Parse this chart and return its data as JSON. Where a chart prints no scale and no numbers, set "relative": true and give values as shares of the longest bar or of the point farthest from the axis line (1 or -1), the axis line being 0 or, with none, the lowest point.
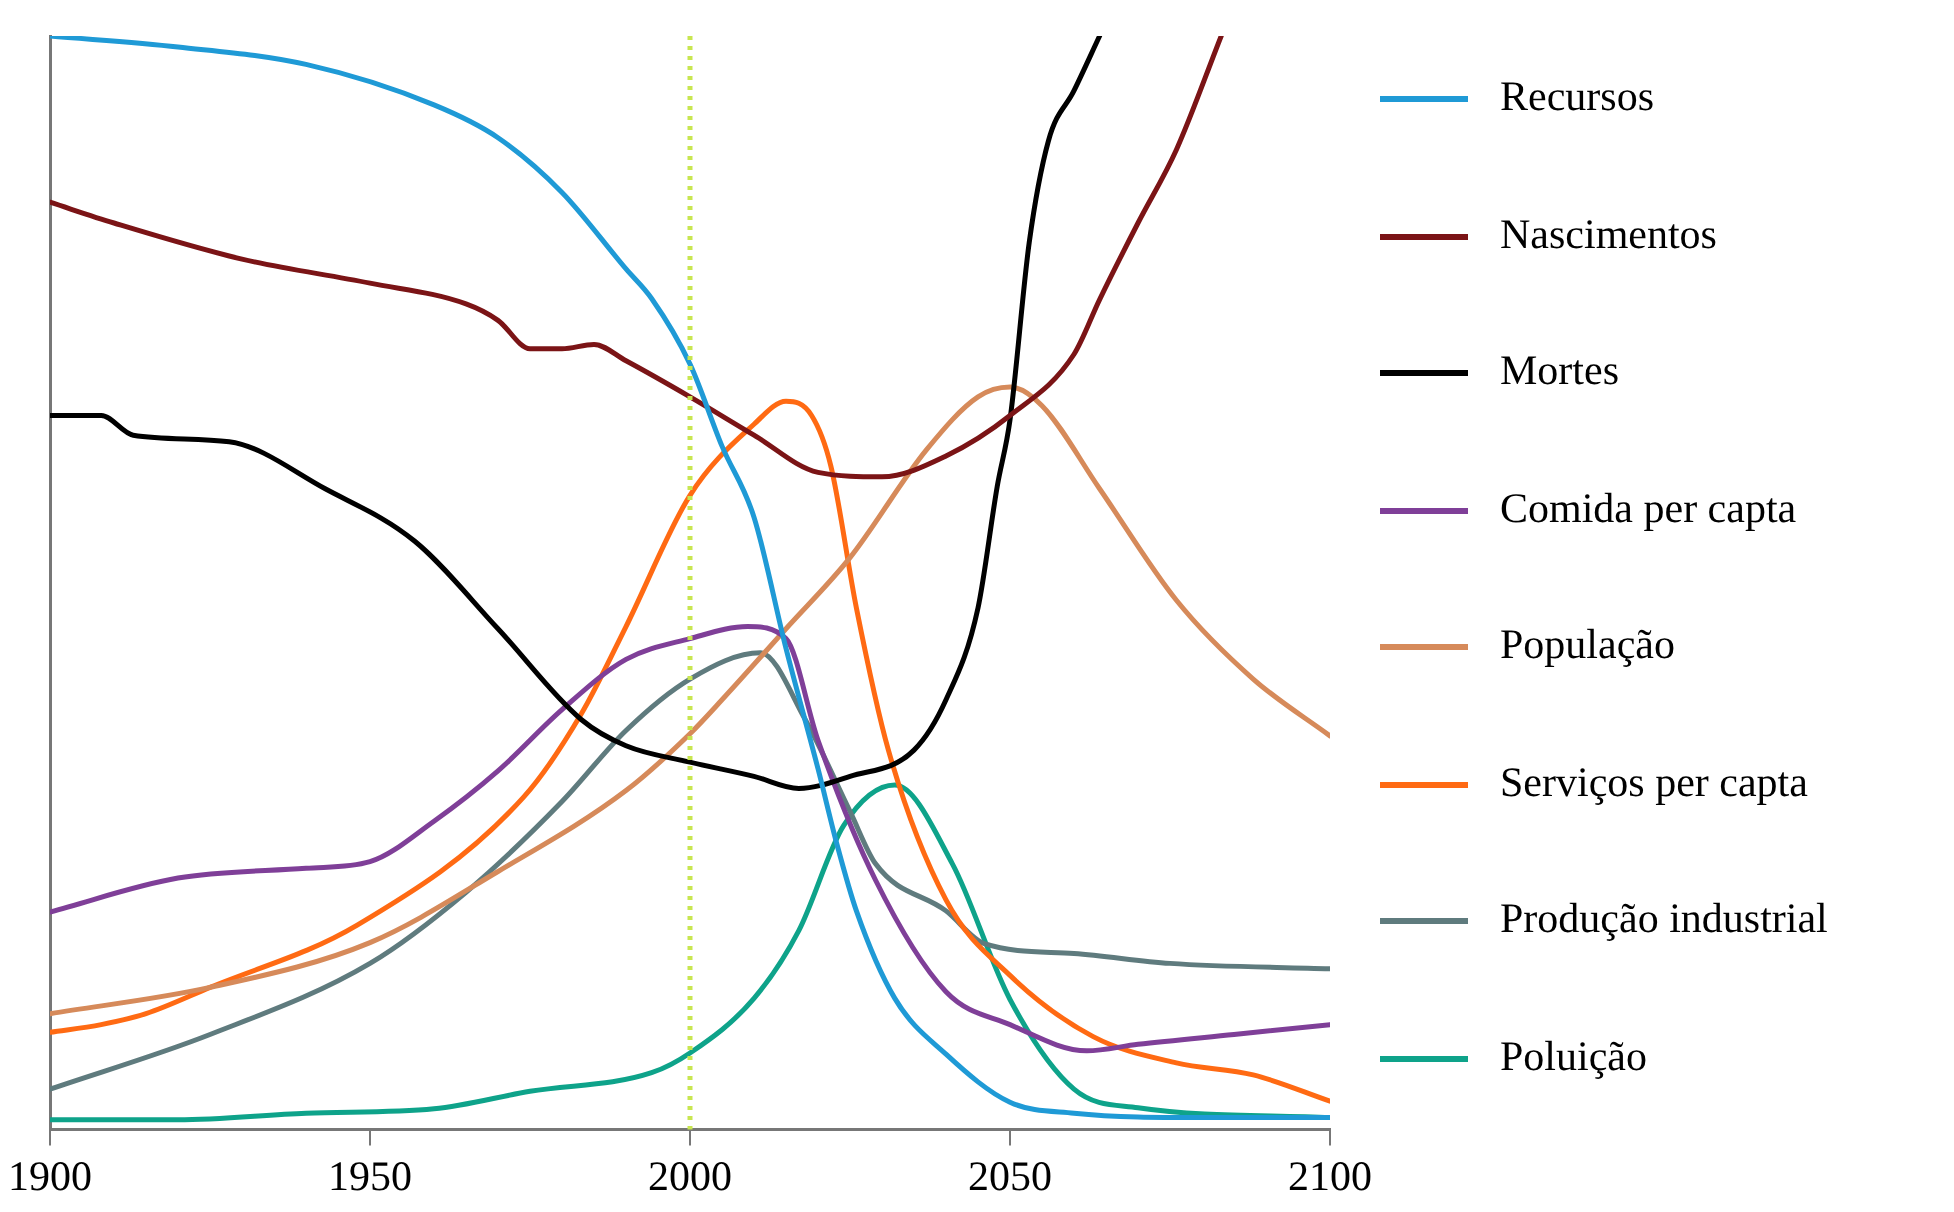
{
  "chart_data": {
    "type": "line",
    "relative": true,
    "xlim": [
      1900,
      2100
    ],
    "xticks": [
      1900,
      1950,
      2000,
      2050,
      2100
    ],
    "legend": "right",
    "grid": false,
    "marker": "none",
    "line_style": "solid",
    "ref_lines": [
      {
        "axis": "x",
        "value": 2000,
        "color": "#c8e650",
        "line_style": "dotted"
      }
    ],
    "series": [
      {
        "name": "Recursos",
        "color": "#1f9ad6",
        "x": [
          1900,
          1920,
          1940,
          1960,
          1970,
          1980,
          1990,
          1994,
          2000,
          2005,
          2010,
          2015,
          2020,
          2023,
          2026,
          2032,
          2040,
          2050,
          2060,
          2080,
          2100
        ],
        "values": [
          1.0,
          0.99,
          0.974,
          0.937,
          0.907,
          0.857,
          0.787,
          0.76,
          0.7,
          0.625,
          0.56,
          0.44,
          0.33,
          0.26,
          0.2,
          0.12,
          0.069,
          0.025,
          0.015,
          0.011,
          0.011
        ]
      },
      {
        "name": "Nascimentos",
        "color": "#7b1416",
        "x": [
          1900,
          1910,
          1930,
          1950,
          1965,
          1970,
          1975,
          1980,
          1985,
          1990,
          2000,
          2010,
          2020,
          2030,
          2040,
          2050,
          2060,
          2064,
          2070,
          2076,
          2083
        ],
        "values": [
          0.848,
          0.829,
          0.796,
          0.774,
          0.755,
          0.74,
          0.714,
          0.714,
          0.718,
          0.703,
          0.67,
          0.635,
          0.601,
          0.597,
          0.616,
          0.653,
          0.709,
          0.759,
          0.829,
          0.896,
          1.0
        ]
      },
      {
        "name": "Mortes",
        "color": "#000000",
        "x": [
          1900,
          1908,
          1913,
          1928,
          1943,
          1957,
          1970,
          1983,
          1990,
          2000,
          2010,
          2017,
          2025,
          2035,
          2040,
          2045,
          2048,
          2050,
          2053,
          2056,
          2060,
          2064
        ],
        "values": [
          0.653,
          0.653,
          0.635,
          0.629,
          0.586,
          0.538,
          0.458,
          0.375,
          0.351,
          0.336,
          0.323,
          0.312,
          0.323,
          0.347,
          0.393,
          0.477,
          0.588,
          0.649,
          0.811,
          0.904,
          0.95,
          1.0
        ]
      },
      {
        "name": "Comida per capta",
        "color": "#7f3f98",
        "x": [
          1900,
          1920,
          1940,
          1950,
          1960,
          1970,
          1980,
          1990,
          2000,
          2009,
          2015,
          2020,
          2029,
          2040,
          2050,
          2062,
          2070,
          2085,
          2100
        ],
        "values": [
          0.199,
          0.23,
          0.239,
          0.245,
          0.282,
          0.328,
          0.384,
          0.43,
          0.449,
          0.46,
          0.449,
          0.356,
          0.228,
          0.126,
          0.096,
          0.072,
          0.078,
          0.087,
          0.096
        ]
      },
      {
        "name": "População",
        "color": "#d68a5a",
        "x": [
          1900,
          1925,
          1950,
          1970,
          1990,
          2000,
          2005,
          2015,
          2025,
          2037,
          2045,
          2050,
          2055,
          2064,
          2076,
          2088,
          2100
        ],
        "values": [
          0.106,
          0.13,
          0.171,
          0.236,
          0.31,
          0.362,
          0.393,
          0.458,
          0.523,
          0.622,
          0.67,
          0.679,
          0.662,
          0.586,
          0.484,
          0.412,
          0.36
        ]
      },
      {
        "name": "Serviços per capta",
        "color": "#ff6a13",
        "x": [
          1900,
          1908,
          1915,
          1925,
          1948,
          1974,
          1983,
          1990,
          2000,
          2010,
          2015,
          2019,
          2022,
          2026,
          2031,
          2040,
          2050,
          2063,
          2076,
          2088,
          2100
        ],
        "values": [
          0.089,
          0.096,
          0.106,
          0.13,
          0.187,
          0.304,
          0.38,
          0.46,
          0.58,
          0.645,
          0.666,
          0.653,
          0.607,
          0.477,
          0.347,
          0.21,
          0.141,
          0.085,
          0.061,
          0.05,
          0.026
        ]
      },
      {
        "name": "Produção industrial",
        "color": "#5f7b7e",
        "x": [
          1900,
          1925,
          1950,
          1965,
          1980,
          1990,
          2000,
          2011,
          2018,
          2025,
          2029,
          2040,
          2046,
          2060,
          2075,
          2100
        ],
        "values": [
          0.037,
          0.087,
          0.152,
          0.217,
          0.3,
          0.365,
          0.412,
          0.436,
          0.375,
          0.291,
          0.243,
          0.2,
          0.17,
          0.161,
          0.152,
          0.147
        ]
      },
      {
        "name": "Poluição",
        "color": "#0ea38a",
        "x": [
          1900,
          1920,
          1940,
          1960,
          1975,
          1994,
          2000,
          2010,
          2017,
          2024,
          2032,
          2041,
          2050,
          2060,
          2070,
          2100
        ],
        "values": [
          0.009,
          0.009,
          0.015,
          0.019,
          0.035,
          0.052,
          0.07,
          0.12,
          0.182,
          0.278,
          0.315,
          0.243,
          0.119,
          0.037,
          0.02,
          0.011
        ]
      }
    ]
  }
}
